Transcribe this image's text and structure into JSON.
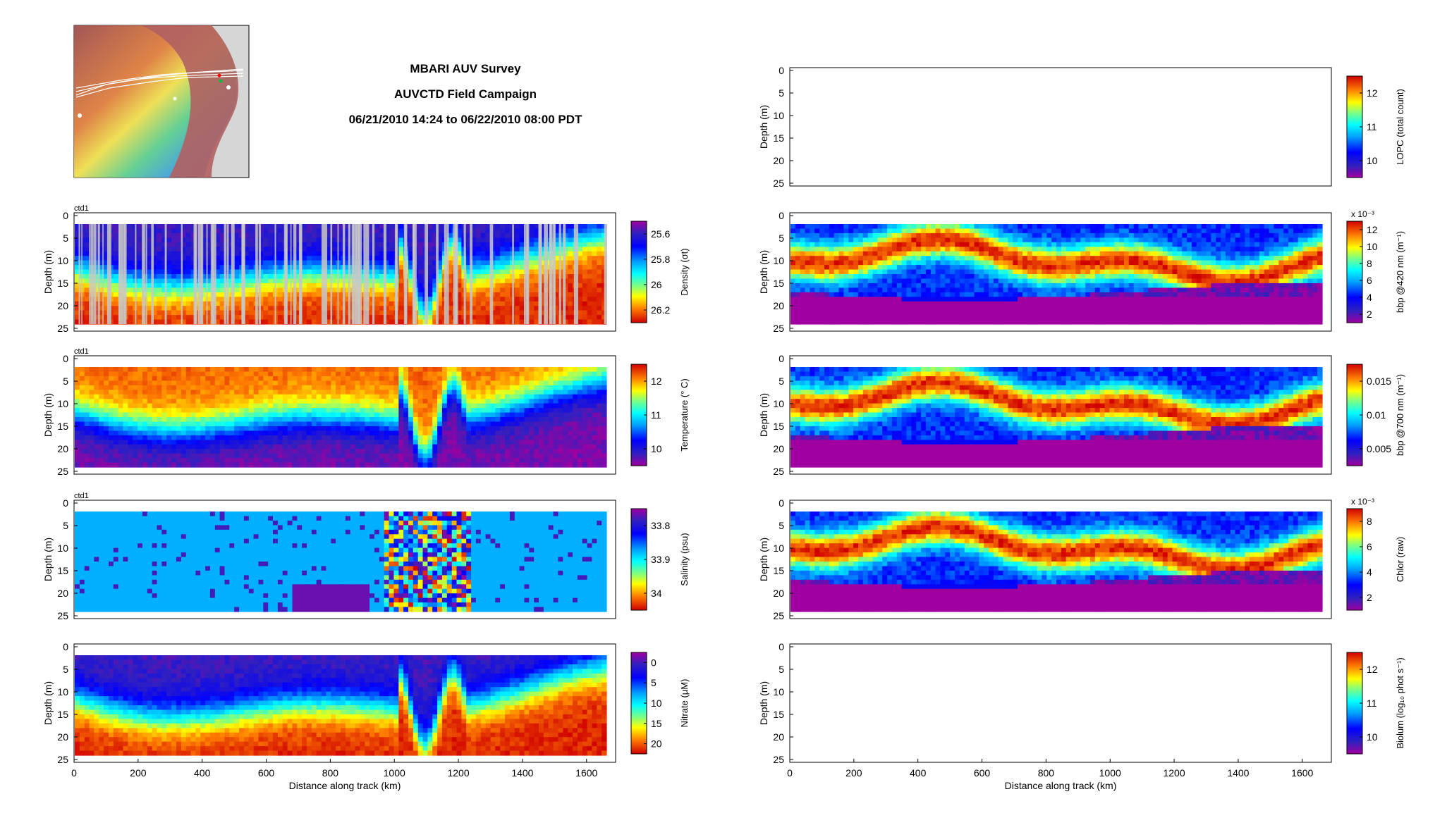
{
  "title": {
    "line1": "MBARI AUV Survey",
    "line2": "AUVCTD Field Campaign",
    "line3": "06/21/2010 14:24 to 06/22/2010 08:00 PDT"
  },
  "colors": {
    "axis": "#000000",
    "gray_overlay": "#c8c8c8",
    "land": "#d4d4d4"
  },
  "chart_data": [
    {
      "id": "density",
      "type": "heatmap",
      "corner_label": "ctd1",
      "xlabel": "",
      "ylabel": "Depth (m)",
      "xlim": [
        0,
        1660
      ],
      "ylim": [
        25,
        0
      ],
      "yticks": [
        0,
        5,
        10,
        15,
        20,
        25
      ],
      "xticks": [],
      "colorbar": {
        "label": "Density (σt)",
        "ticks": [
          "25.6",
          "25.8",
          "26",
          "26.2"
        ],
        "reversed": true
      },
      "gray_overlay": true,
      "pattern": "lowerhalf"
    },
    {
      "id": "temperature",
      "type": "heatmap",
      "corner_label": "ctd1",
      "xlabel": "",
      "ylabel": "Depth (m)",
      "xlim": [
        0,
        1660
      ],
      "ylim": [
        25,
        0
      ],
      "yticks": [
        0,
        5,
        10,
        15,
        20,
        25
      ],
      "xticks": [],
      "colorbar": {
        "label": "Temperature (° C)",
        "ticks": [
          "10",
          "11",
          "12"
        ],
        "reversed": false
      },
      "pattern": "warmtop"
    },
    {
      "id": "salinity",
      "type": "heatmap",
      "corner_label": "ctd1",
      "xlabel": "",
      "ylabel": "Depth (m)",
      "xlim": [
        0,
        1660
      ],
      "ylim": [
        25,
        0
      ],
      "yticks": [
        0,
        5,
        10,
        15,
        20,
        25
      ],
      "xticks": [],
      "colorbar": {
        "label": "Salinity (psu)",
        "ticks": [
          "33.8",
          "33.9",
          "34"
        ],
        "reversed": true
      },
      "pattern": "salinity"
    },
    {
      "id": "nitrate",
      "type": "heatmap",
      "corner_label": "",
      "xlabel": "Distance along track (km)",
      "ylabel": "Depth (m)",
      "xlim": [
        0,
        1660
      ],
      "ylim": [
        25,
        0
      ],
      "yticks": [
        0,
        5,
        10,
        15,
        20,
        25
      ],
      "xticks": [
        0,
        200,
        400,
        600,
        800,
        1000,
        1200,
        1400,
        1600
      ],
      "colorbar": {
        "label": "Nitrate (µM)",
        "ticks": [
          "0",
          "5",
          "10",
          "15",
          "20"
        ],
        "reversed": true
      },
      "pattern": "nitrate"
    },
    {
      "id": "lopc",
      "type": "heatmap",
      "corner_label": "",
      "xlabel": "",
      "ylabel": "Depth (m)",
      "xlim": [
        0,
        1660
      ],
      "ylim": [
        25,
        0
      ],
      "yticks": [
        0,
        5,
        10,
        15,
        20,
        25
      ],
      "xticks": [],
      "colorbar": {
        "label": "LOPC (total count)",
        "ticks": [
          "10",
          "11",
          "12"
        ],
        "reversed": false
      },
      "pattern": "empty"
    },
    {
      "id": "bbp420",
      "type": "heatmap",
      "corner_label": "",
      "xlabel": "",
      "ylabel": "Depth (m)",
      "xlim": [
        0,
        1660
      ],
      "ylim": [
        25,
        0
      ],
      "yticks": [
        0,
        5,
        10,
        15,
        20,
        25
      ],
      "xticks": [],
      "colorbar": {
        "label": "bbp @420 nm (m⁻¹)",
        "ticks": [
          "2",
          "4",
          "6",
          "8",
          "10",
          "12"
        ],
        "reversed": false,
        "exponent": "x 10⁻³"
      },
      "pattern": "layer"
    },
    {
      "id": "bbp700",
      "type": "heatmap",
      "corner_label": "",
      "xlabel": "",
      "ylabel": "Depth (m)",
      "xlim": [
        0,
        1660
      ],
      "ylim": [
        25,
        0
      ],
      "yticks": [
        0,
        5,
        10,
        15,
        20,
        25
      ],
      "xticks": [],
      "colorbar": {
        "label": "bbp @700 nm (m⁻¹)",
        "ticks": [
          "0.005",
          "0.01",
          "0.015"
        ],
        "reversed": false
      },
      "pattern": "layer"
    },
    {
      "id": "chlor",
      "type": "heatmap",
      "corner_label": "",
      "xlabel": "",
      "ylabel": "Depth (m)",
      "xlim": [
        0,
        1660
      ],
      "ylim": [
        25,
        0
      ],
      "yticks": [
        0,
        5,
        10,
        15,
        20,
        25
      ],
      "xticks": [],
      "colorbar": {
        "label": "Chlor (raw)",
        "ticks": [
          "2",
          "4",
          "6",
          "8"
        ],
        "reversed": false,
        "exponent": "x 10⁻³"
      },
      "pattern": "layer"
    },
    {
      "id": "biolum",
      "type": "heatmap",
      "corner_label": "",
      "xlabel": "Distance along track (km)",
      "ylabel": "Depth (m)",
      "xlim": [
        0,
        1660
      ],
      "ylim": [
        25,
        0
      ],
      "yticks": [
        0,
        5,
        10,
        15,
        20,
        25
      ],
      "xticks": [
        0,
        200,
        400,
        600,
        800,
        1000,
        1200,
        1400,
        1600
      ],
      "colorbar": {
        "label": "Biolum (log₁₀ phot s⁻¹)",
        "ticks": [
          "10",
          "11",
          "12"
        ],
        "reversed": false
      },
      "pattern": "empty"
    }
  ]
}
